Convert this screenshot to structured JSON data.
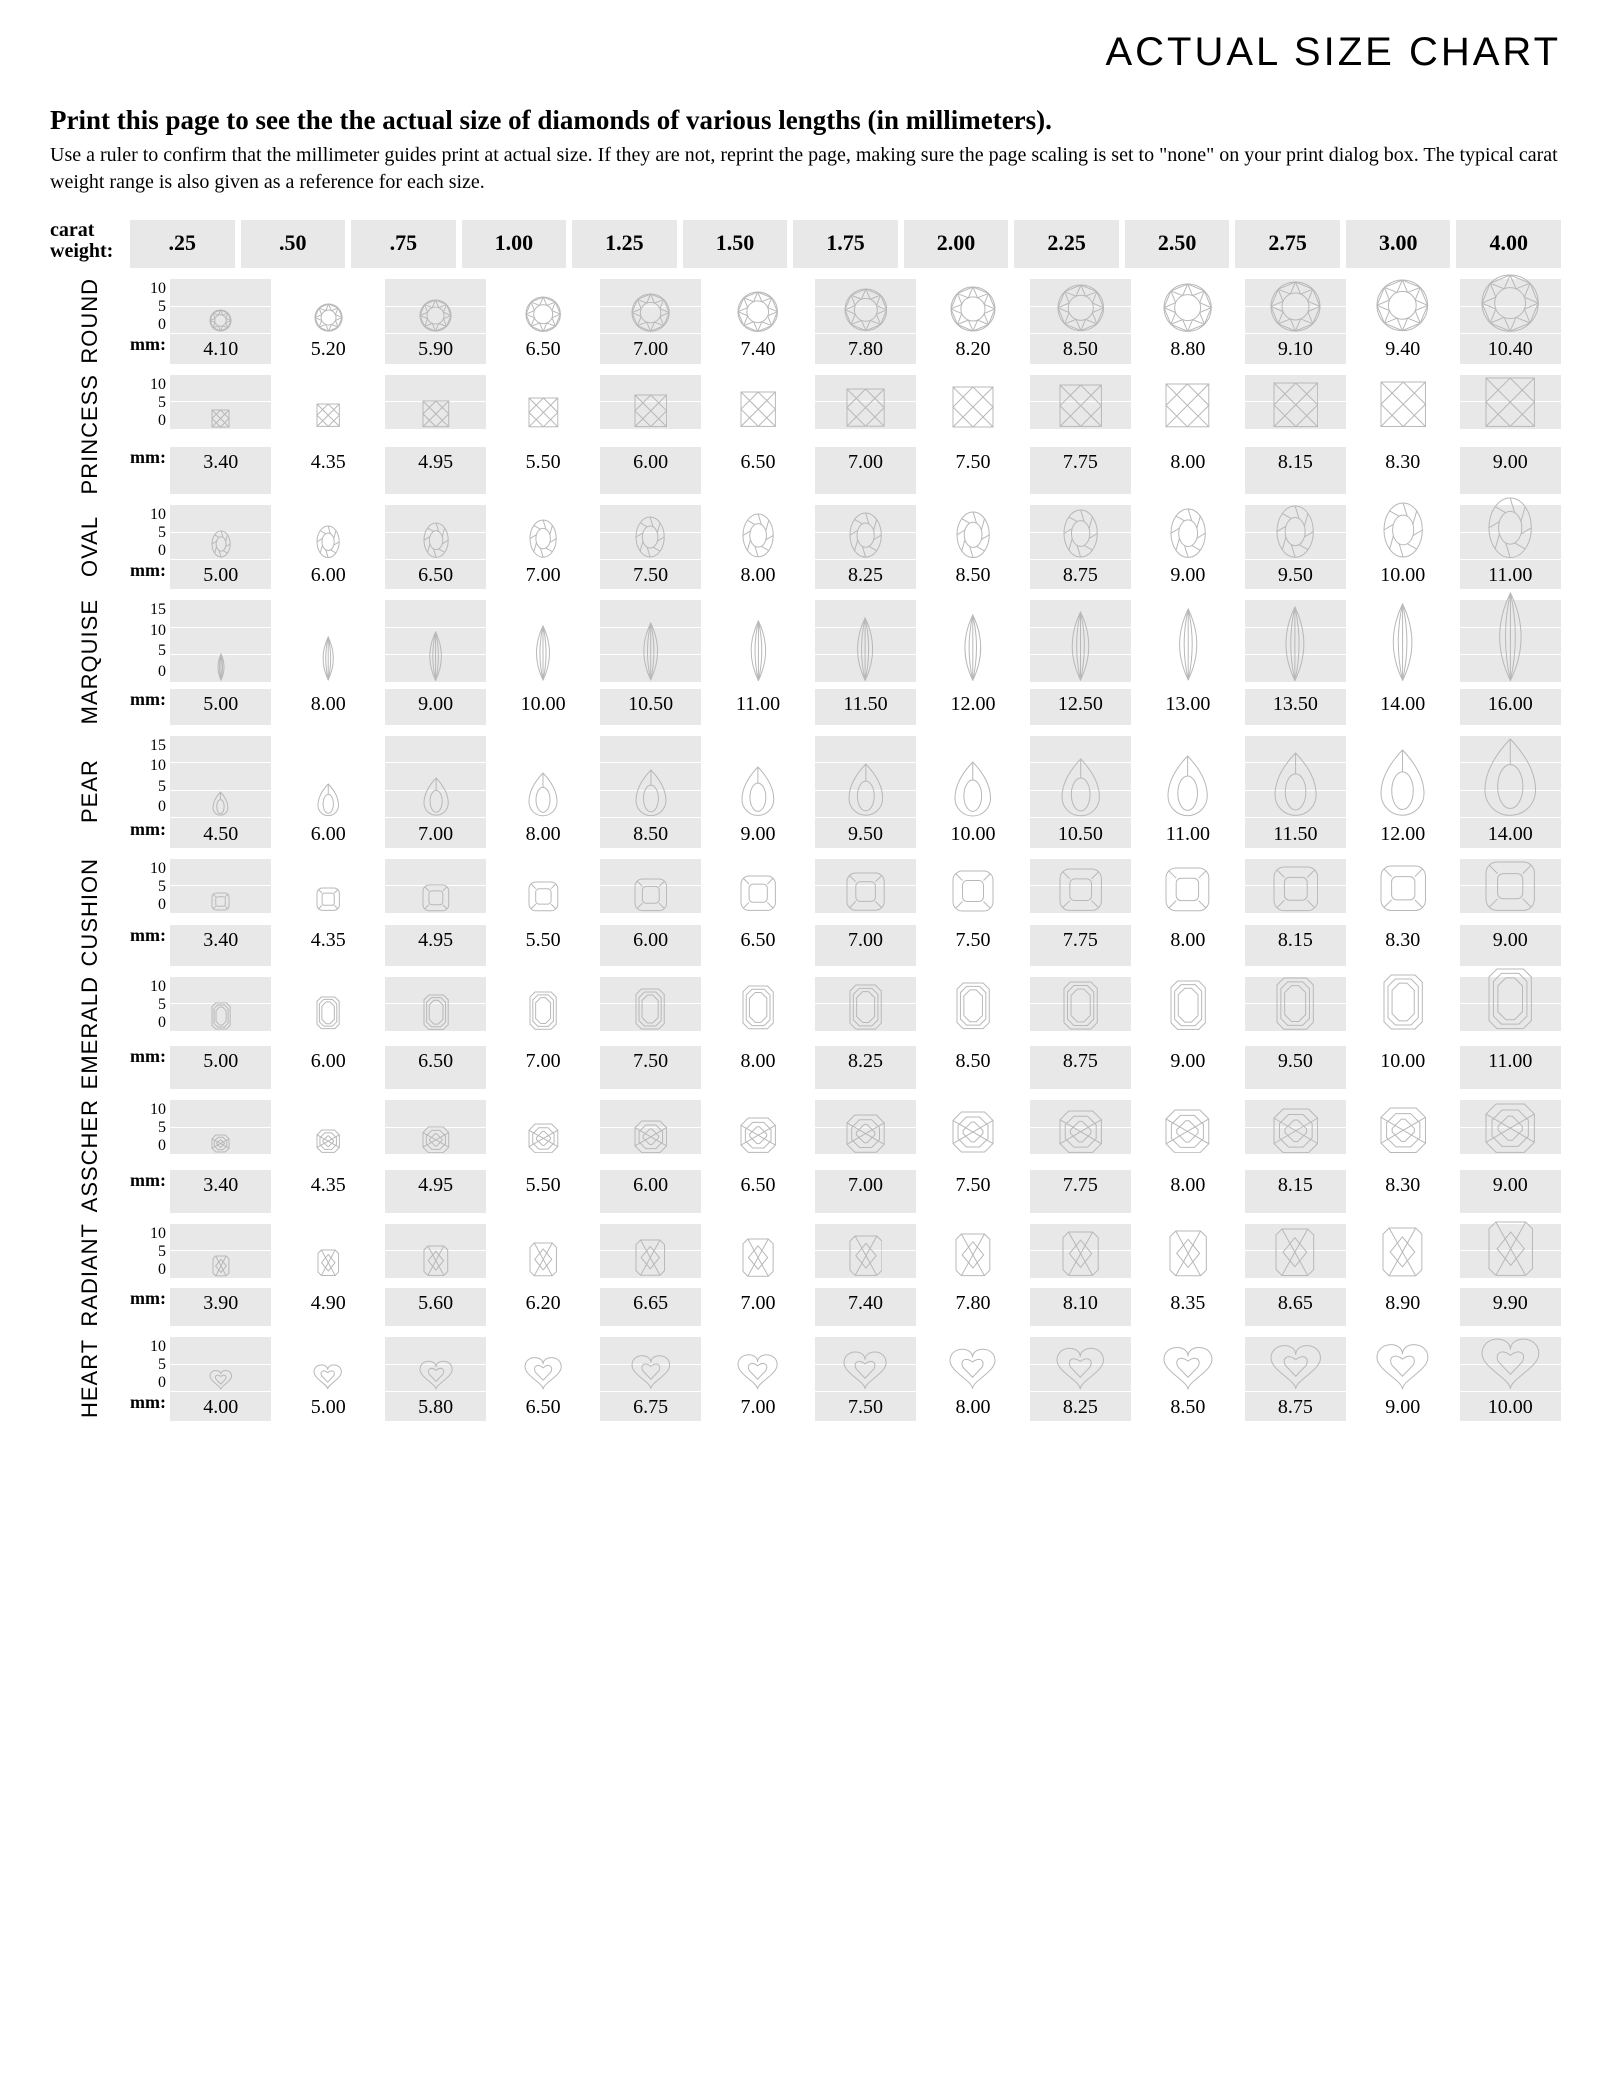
{
  "title": "ACTUAL SIZE CHART",
  "subtitle": "Print this page to see the the actual size of diamonds of various lengths (in millimeters).",
  "instructions": "Use a ruler to confirm that the millimeter guides print at actual size.  If they are not, reprint the page, making sure the page scaling is set to \"none\" on your print dialog box.  The typical carat weight range is also given as a reference for each size.",
  "caratHeaderLabel": "carat\nweight:",
  "mmLabel": "mm:",
  "caratWeights": [
    ".25",
    ".50",
    ".75",
    "1.00",
    "1.25",
    "1.50",
    "1.75",
    "2.00",
    "2.25",
    "2.50",
    "2.75",
    "3.00",
    "4.00"
  ],
  "colors": {
    "altBg": "#e8e8e8",
    "gridline": "#ffffff",
    "stroke": "#b8b8b8",
    "text": "#000000",
    "bg": "#ffffff"
  },
  "layout": {
    "pxPerMm": 5.6,
    "cellColumns": 13,
    "columnGap": 6
  },
  "shapes": [
    {
      "name": "ROUND",
      "shapeId": "round",
      "rulerMax": 10,
      "rulerTicks": [
        10,
        5,
        0
      ],
      "aspect": 1.0,
      "mm": [
        "4.10",
        "5.20",
        "5.90",
        "6.50",
        "7.00",
        "7.40",
        "7.80",
        "8.20",
        "8.50",
        "8.80",
        "9.10",
        "9.40",
        "10.40"
      ]
    },
    {
      "name": "PRINCESS",
      "shapeId": "princess",
      "rulerMax": 10,
      "rulerTicks": [
        10,
        5,
        0
      ],
      "aspect": 1.0,
      "mm": [
        "3.40",
        "4.35",
        "4.95",
        "5.50",
        "6.00",
        "6.50",
        "7.00",
        "7.50",
        "7.75",
        "8.00",
        "8.15",
        "8.30",
        "9.00"
      ]
    },
    {
      "name": "OVAL",
      "shapeId": "oval",
      "rulerMax": 10,
      "rulerTicks": [
        10,
        5,
        0
      ],
      "aspect": 0.72,
      "mm": [
        "5.00",
        "6.00",
        "6.50",
        "7.00",
        "7.50",
        "8.00",
        "8.25",
        "8.50",
        "8.75",
        "9.00",
        "9.50",
        "10.00",
        "11.00"
      ]
    },
    {
      "name": "MARQUISE",
      "shapeId": "marquise",
      "rulerMax": 15,
      "rulerTicks": [
        15,
        10,
        5,
        0
      ],
      "aspect": 0.5,
      "mm": [
        "5.00",
        "8.00",
        "9.00",
        "10.00",
        "10.50",
        "11.00",
        "11.50",
        "12.00",
        "12.50",
        "13.00",
        "13.50",
        "14.00",
        "16.00"
      ]
    },
    {
      "name": "PEAR",
      "shapeId": "pear",
      "rulerMax": 15,
      "rulerTicks": [
        15,
        10,
        5,
        0
      ],
      "aspect": 0.67,
      "mm": [
        "4.50",
        "6.00",
        "7.00",
        "8.00",
        "8.50",
        "9.00",
        "9.50",
        "10.00",
        "10.50",
        "11.00",
        "11.50",
        "12.00",
        "14.00"
      ]
    },
    {
      "name": "CUSHION",
      "shapeId": "cushion",
      "rulerMax": 10,
      "rulerTicks": [
        10,
        5,
        0
      ],
      "aspect": 1.0,
      "mm": [
        "3.40",
        "4.35",
        "4.95",
        "5.50",
        "6.00",
        "6.50",
        "7.00",
        "7.50",
        "7.75",
        "8.00",
        "8.15",
        "8.30",
        "9.00"
      ]
    },
    {
      "name": "EMERALD",
      "shapeId": "emerald",
      "rulerMax": 10,
      "rulerTicks": [
        10,
        5,
        0
      ],
      "aspect": 0.72,
      "mm": [
        "5.00",
        "6.00",
        "6.50",
        "7.00",
        "7.50",
        "8.00",
        "8.25",
        "8.50",
        "8.75",
        "9.00",
        "9.50",
        "10.00",
        "11.00"
      ]
    },
    {
      "name": "ASSCHER",
      "shapeId": "asscher",
      "rulerMax": 10,
      "rulerTicks": [
        10,
        5,
        0
      ],
      "aspect": 1.0,
      "mm": [
        "3.40",
        "4.35",
        "4.95",
        "5.50",
        "6.00",
        "6.50",
        "7.00",
        "7.50",
        "7.75",
        "8.00",
        "8.15",
        "8.30",
        "9.00"
      ]
    },
    {
      "name": "RADIANT",
      "shapeId": "radiant",
      "rulerMax": 10,
      "rulerTicks": [
        10,
        5,
        0
      ],
      "aspect": 0.82,
      "mm": [
        "3.90",
        "4.90",
        "5.60",
        "6.20",
        "6.65",
        "7.00",
        "7.40",
        "7.80",
        "8.10",
        "8.35",
        "8.65",
        "8.90",
        "9.90"
      ]
    },
    {
      "name": "HEART",
      "shapeId": "heart",
      "rulerMax": 10,
      "rulerTicks": [
        10,
        5,
        0
      ],
      "aspect": 1.05,
      "mm": [
        "4.00",
        "5.00",
        "5.80",
        "6.50",
        "6.75",
        "7.00",
        "7.50",
        "8.00",
        "8.25",
        "8.50",
        "8.75",
        "9.00",
        "10.00"
      ]
    }
  ]
}
